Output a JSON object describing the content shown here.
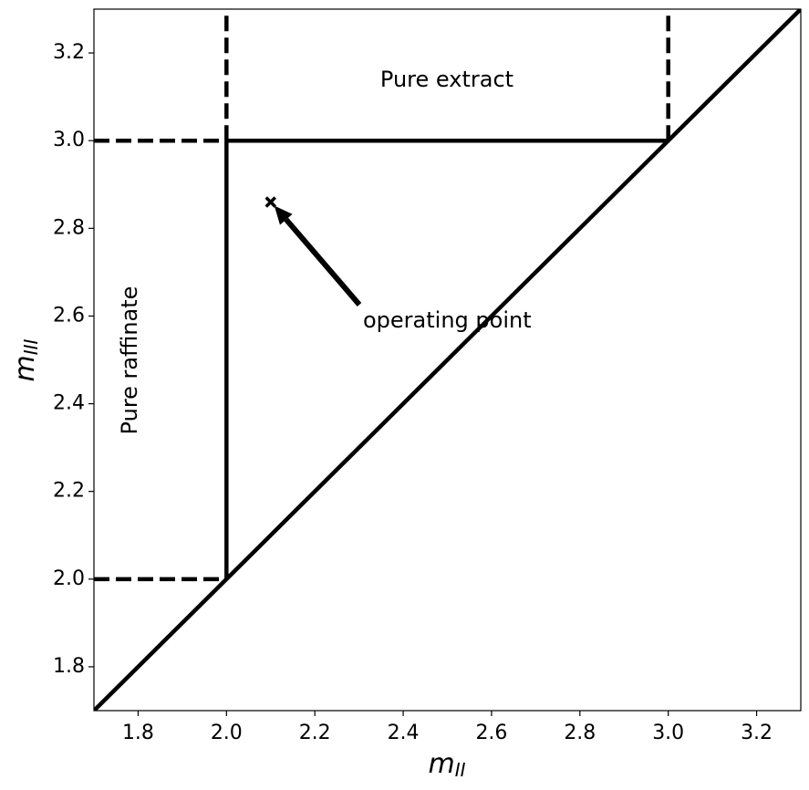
{
  "chart_data": {
    "type": "line",
    "x_label": "m",
    "x_label_sub": "II",
    "y_label": "m",
    "y_label_sub": "III",
    "xlim": [
      1.7,
      3.3
    ],
    "ylim": [
      1.7,
      3.3
    ],
    "xticks": [
      1.8,
      {
        "value": 2,
        "label": "2.0"
      },
      2.2,
      2.4,
      2.6,
      2.8,
      {
        "value": 3,
        "label": "3.0"
      },
      3.2
    ],
    "yticks": [
      1.8,
      {
        "value": 2,
        "label": "2.0"
      },
      2.2,
      2.4,
      2.6,
      2.8,
      {
        "value": 3,
        "label": "3.0"
      },
      3.2
    ],
    "grid": false,
    "series": [
      {
        "color": "#000000",
        "style": "solid",
        "x": [
          1.7,
          3.3
        ],
        "values": [
          1.7,
          3.3
        ]
      },
      {
        "color": "#000000",
        "style": "solid",
        "x": [
          2,
          3
        ],
        "values": [
          3,
          3
        ]
      },
      {
        "color": "#000000",
        "style": "solid",
        "x": [
          2,
          2
        ],
        "values": [
          2,
          3
        ]
      },
      {
        "color": "#000000",
        "style": "dashed",
        "x": [
          2,
          2
        ],
        "values": [
          3,
          3.3
        ]
      },
      {
        "color": "#000000",
        "style": "dashed",
        "x": [
          3,
          3
        ],
        "values": [
          3,
          3.3
        ]
      },
      {
        "color": "#000000",
        "style": "dashed",
        "x": [
          1.7,
          2
        ],
        "values": [
          3,
          3
        ]
      },
      {
        "color": "#000000",
        "style": "dashed",
        "x": [
          1.7,
          2
        ],
        "values": [
          2,
          2
        ]
      },
      {
        "color": "#000000",
        "style": "marker",
        "x": [
          2.1
        ],
        "values": [
          2.86
        ]
      }
    ],
    "annotations": [
      "Pure extract",
      "Pure raffinate",
      "operating point"
    ]
  }
}
